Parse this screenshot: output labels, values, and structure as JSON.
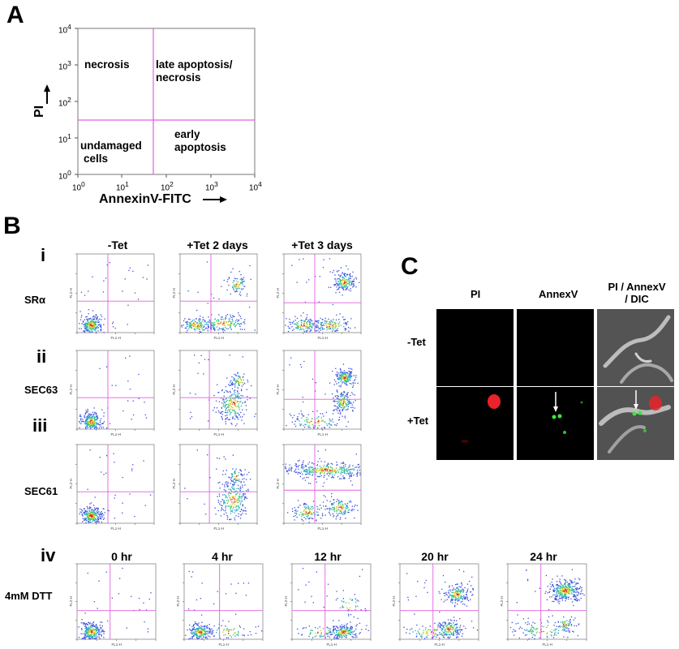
{
  "panels": {
    "a": "A",
    "b": "B",
    "c": "C"
  },
  "panel_a": {
    "ylabel": "PI",
    "xlabel": "AnnexinV-FITC",
    "quadrants": {
      "upper_left": "necrosis",
      "upper_right_1": "late apoptosis/",
      "upper_right_2": "necrosis",
      "lower_left_1": "undamaged",
      "lower_left_2": "cells",
      "lower_right_1": "early",
      "lower_right_2": "apoptosis"
    },
    "ticks": {
      "base": "10",
      "exps": [
        "0",
        "1",
        "2",
        "3",
        "4"
      ]
    }
  },
  "panel_b": {
    "columns": [
      "-Tet",
      "+Tet 2 days",
      "+Tet 3 days"
    ],
    "rows": [
      {
        "roman": "i",
        "name": "SRα"
      },
      {
        "roman": "ii",
        "name": "SEC63"
      },
      {
        "roman": "iii",
        "name": "SEC61"
      }
    ],
    "iv": {
      "roman": "iv",
      "name": "4mM DTT",
      "timepoints": [
        "0 hr",
        "4 hr",
        "12 hr",
        "20 hr",
        "24 hr"
      ]
    },
    "axis_small": {
      "x": "FL1-H",
      "y": "FL2-H"
    }
  },
  "panel_c": {
    "columns": [
      "PI",
      "AnnexV",
      "PI / AnnexV",
      "/ DIC"
    ],
    "rows": [
      "-Tet",
      "+Tet"
    ]
  }
}
